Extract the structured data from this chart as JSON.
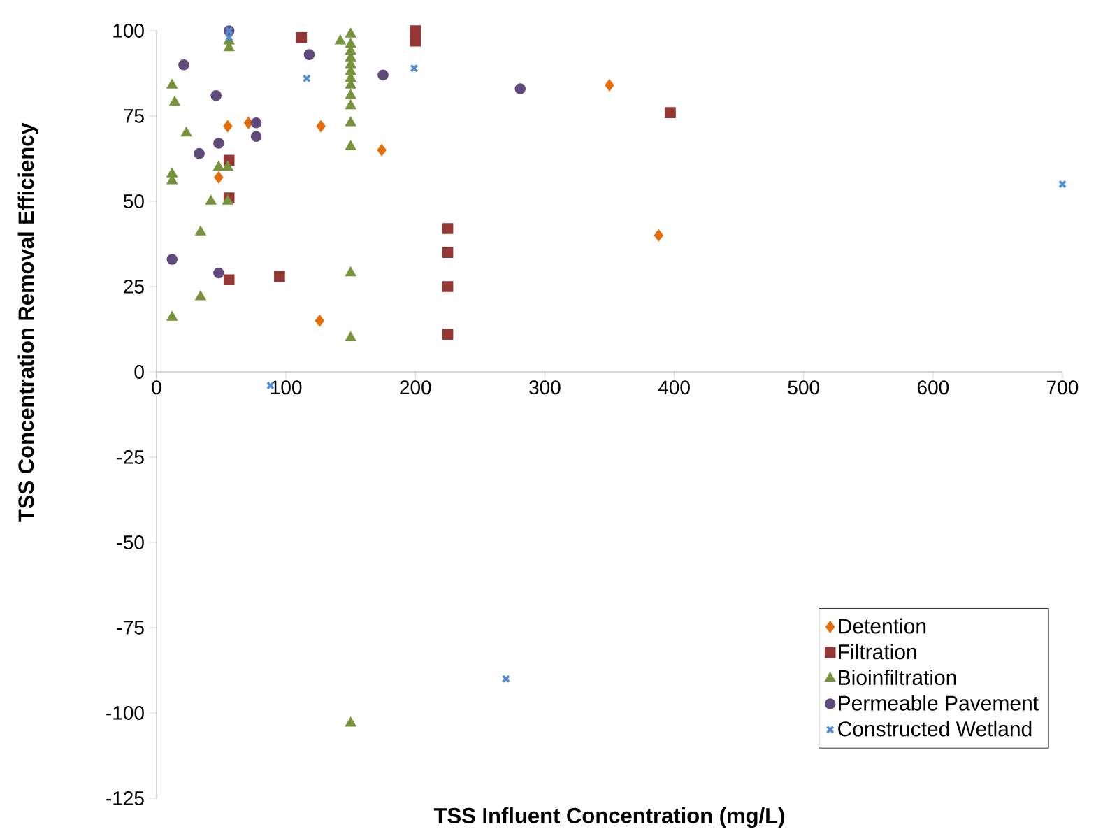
{
  "chart_data": {
    "type": "scatter",
    "xlabel": "TSS Influent Concentration (mg/L)",
    "ylabel": "TSS Concentration Removal Efficiency",
    "xlim": [
      0,
      700
    ],
    "xticks": [
      0,
      100,
      200,
      300,
      400,
      500,
      600,
      700
    ],
    "ylim": [
      -125,
      100
    ],
    "yticks": [
      -125,
      -100,
      -75,
      -50,
      -25,
      0,
      25,
      50,
      75,
      100
    ],
    "grid": false,
    "legend": "bottom right",
    "series": [
      {
        "name": "Detention",
        "color": "#e46c0a",
        "marker": "diamond",
        "x": [
          55,
          71,
          127,
          174,
          48,
          126,
          350,
          388
        ],
        "values": [
          72,
          73,
          72,
          65,
          57,
          15,
          84,
          40
        ]
      },
      {
        "name": "Filtration",
        "color": "#953735",
        "marker": "square",
        "x": [
          112,
          200,
          200,
          397,
          56,
          56,
          56,
          95,
          225,
          225,
          225,
          225
        ],
        "values": [
          98,
          100,
          97,
          76,
          62,
          51,
          27,
          28,
          42,
          35,
          25,
          11
        ]
      },
      {
        "name": "Bioinfiltration",
        "color": "#77933c",
        "marker": "triangle",
        "x": [
          56,
          56,
          12,
          14,
          23,
          12,
          12,
          48,
          55,
          42,
          55,
          142,
          150,
          150,
          150,
          150,
          150,
          150,
          150,
          150,
          150,
          150,
          150,
          150,
          34,
          150,
          34,
          12,
          150,
          150
        ],
        "values": [
          97,
          95,
          84,
          79,
          70,
          58,
          56,
          60,
          60,
          50,
          50,
          97,
          99,
          96,
          94,
          92,
          90,
          88,
          86,
          84,
          81,
          78,
          73,
          66,
          41,
          29,
          22,
          16,
          10,
          -103
        ]
      },
      {
        "name": "Permeable Pavement",
        "color": "#604a7b",
        "marker": "circle",
        "x": [
          21,
          46,
          77,
          77,
          48,
          33,
          118,
          175,
          56,
          281,
          12,
          48
        ],
        "values": [
          90,
          81,
          73,
          69,
          67,
          64,
          93,
          87,
          100,
          83,
          33,
          29
        ]
      },
      {
        "name": "Constructed Wetland",
        "color": "#558ed5",
        "marker": "cross",
        "x": [
          56,
          56,
          116,
          199,
          88,
          700,
          270
        ],
        "values": [
          100,
          98,
          86,
          89,
          -4,
          55,
          -90
        ]
      }
    ]
  }
}
